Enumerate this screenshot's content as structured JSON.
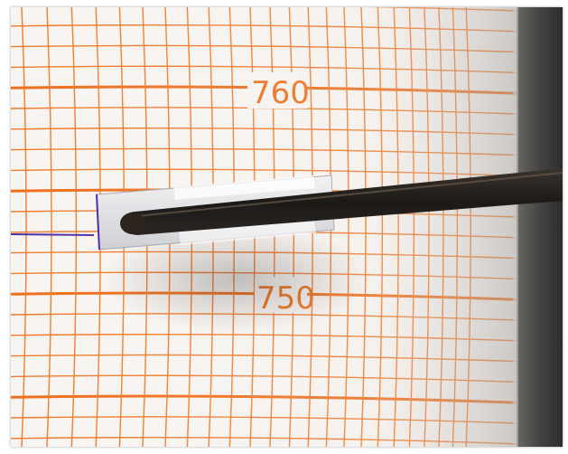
{
  "scene": {
    "subject": "barograph-recording-chart",
    "colors": {
      "paper": "#f7f4f1",
      "grid": "#f27a2a",
      "grid_major": "#ee6f1c",
      "trace": "#4b2fa8",
      "drum_edge": "#3e3e3c",
      "pen_arm": "#1e1c1a",
      "pen_holder": "#e9e9ec"
    }
  },
  "chart_scale": {
    "upper_label": "760",
    "lower_label": "750"
  }
}
